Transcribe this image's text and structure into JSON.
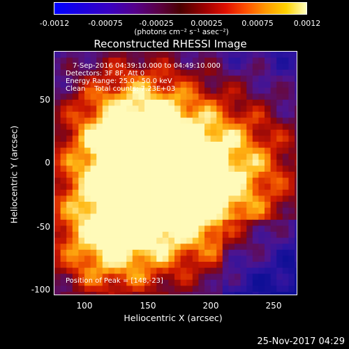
{
  "colorbar": {
    "ticks": [
      "-0.0012",
      "-0.00075",
      "-0.00025",
      "0.00025",
      "0.00075",
      "0.0012"
    ],
    "unit": "(photons cm⁻² s⁻¹ asec⁻²)"
  },
  "title": "Reconstructed RHESSI Image",
  "info": {
    "time": "7-Sep-2016 04:39:10.000 to 04:49:10.000",
    "detectors": "Detectors: 3F 8F, Att 0",
    "energy": "Energy Range: 25.0 - 50.0 keV",
    "clean": "Clean    Total counts: 7.23E+03",
    "peak": "Position of Peak = [148,-23]"
  },
  "axes": {
    "xlabel": "Heliocentric X (arcsec)",
    "ylabel": "Heliocentric Y (arcsec)",
    "xticks": [
      "100",
      "150",
      "200",
      "250"
    ],
    "yticks": [
      "50",
      "0",
      "-50",
      "-100"
    ]
  },
  "footer": {
    "date": "25-Nov-2017 04:29"
  },
  "colors": {
    "background": "#000000",
    "foreground": "#ffffff",
    "colormap_low": "#0000ff",
    "colormap_mid": "#4a0000",
    "colormap_high": "#ffffc0"
  }
}
